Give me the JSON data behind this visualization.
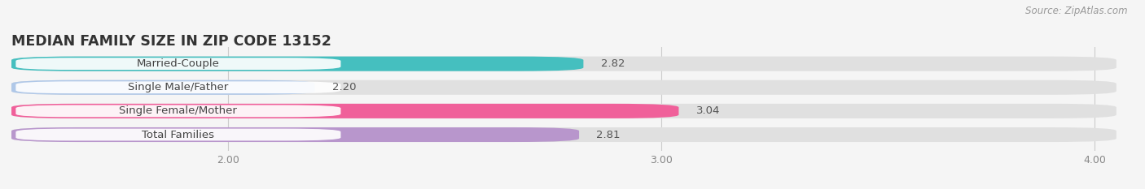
{
  "title": "MEDIAN FAMILY SIZE IN ZIP CODE 13152",
  "source": "Source: ZipAtlas.com",
  "categories": [
    "Married-Couple",
    "Single Male/Father",
    "Single Female/Mother",
    "Total Families"
  ],
  "values": [
    2.82,
    2.2,
    3.04,
    2.81
  ],
  "colors": [
    "#45bfbf",
    "#b0c8e8",
    "#f0609a",
    "#b896cc"
  ],
  "xlim": [
    1.5,
    4.05
  ],
  "xticks": [
    2.0,
    3.0,
    4.0
  ],
  "background_color": "#f5f5f5",
  "bar_bg_color": "#e0e0e0",
  "bar_height": 0.62,
  "title_fontsize": 12.5,
  "label_fontsize": 9.5,
  "value_fontsize": 9.5,
  "source_fontsize": 8.5,
  "tick_fontsize": 9
}
